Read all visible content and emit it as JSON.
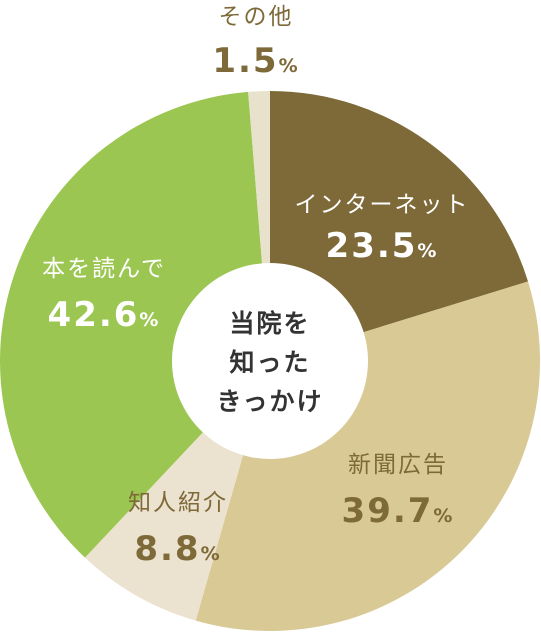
{
  "chart_data": {
    "type": "pie",
    "style": "donut",
    "center_text": [
      "当院を",
      "知った",
      "きっかけ"
    ],
    "unit": "%",
    "start": "top (12 o'clock), clockwise",
    "slices": [
      {
        "name": "インターネット",
        "value": 23.5,
        "color": "#7e6a38",
        "label_color": "#ffffff"
      },
      {
        "name": "新聞広告",
        "value": 39.7,
        "color": "#d8c995",
        "label_color": "#7e6a38"
      },
      {
        "name": "知人紹介",
        "value": 8.8,
        "color": "#ebe2cf",
        "label_color": "#7e6a38"
      },
      {
        "name": "本を読んで",
        "value": 42.6,
        "color": "#9cc652",
        "label_color": "#ffffff"
      },
      {
        "name": "その他",
        "value": 1.5,
        "color": "#e8e1cc",
        "label_color": "#7e6a38"
      }
    ]
  }
}
